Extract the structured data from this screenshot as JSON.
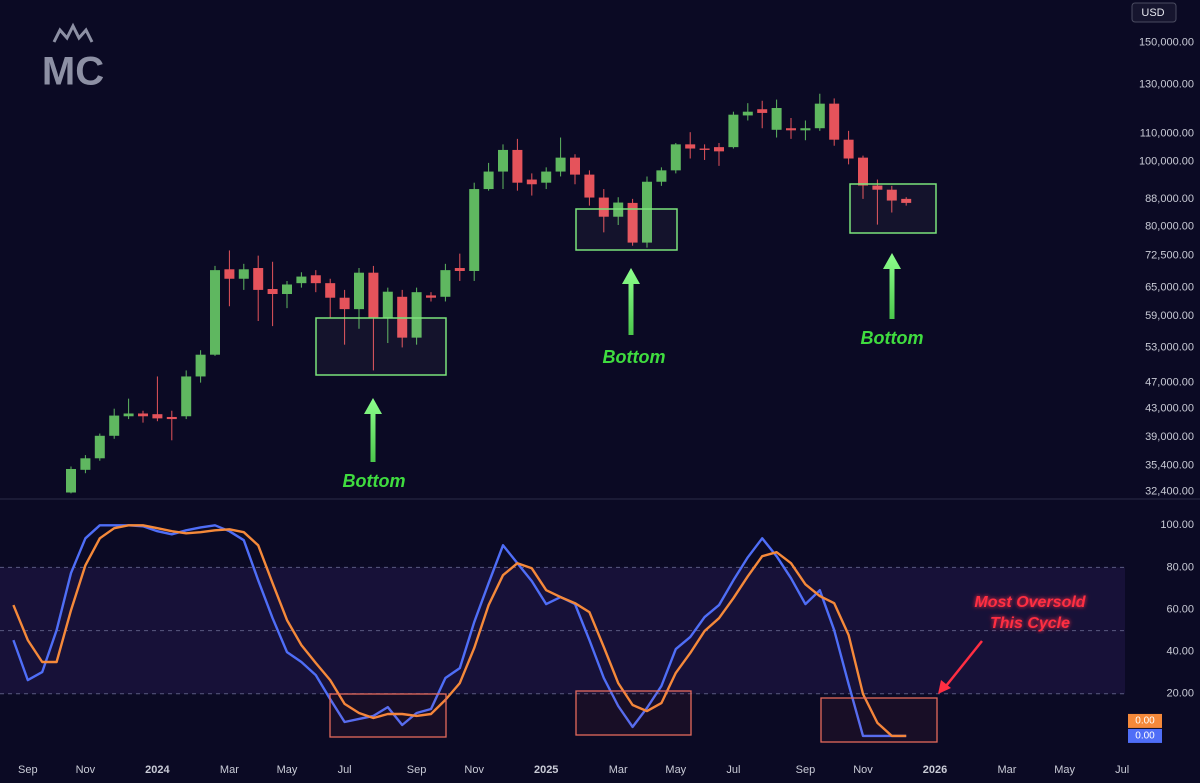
{
  "chart_data": [
    {
      "type": "candlestick",
      "unit": "USD",
      "watermark": "MC",
      "log_scale": true,
      "up_color": "#5fb760",
      "down_color": "#e5535b",
      "ylim": [
        31700,
        173500
      ],
      "yticks": [
        {
          "value": 150000,
          "label": "150,000.00"
        },
        {
          "value": 130000,
          "label": "130,000.00"
        },
        {
          "value": 110000,
          "label": "110,000.00"
        },
        {
          "value": 100000,
          "label": "100,000.00"
        },
        {
          "value": 88000,
          "label": "88,000.00"
        },
        {
          "value": 80000,
          "label": "80,000.00"
        },
        {
          "value": 72500,
          "label": "72,500.00"
        },
        {
          "value": 65000,
          "label": "65,000.00"
        },
        {
          "value": 59000,
          "label": "59,000.00"
        },
        {
          "value": 53000,
          "label": "53,000.00"
        },
        {
          "value": 47000,
          "label": "47,000.00"
        },
        {
          "value": 43000,
          "label": "43,000.00"
        },
        {
          "value": 39000,
          "label": "39,000.00"
        },
        {
          "value": 35400,
          "label": "35,400.00"
        },
        {
          "value": 32400,
          "label": "32,400.00"
        }
      ],
      "open": [
        null,
        null,
        null,
        null,
        32300,
        34900,
        36300,
        39200,
        41900,
        42300,
        42200,
        41800,
        41900,
        48000,
        51700,
        69200,
        67000,
        69500,
        64700,
        63600,
        66000,
        67800,
        66000,
        62800,
        60400,
        68400,
        58700,
        63000,
        54800,
        63300,
        63000,
        69500,
        68800,
        91000,
        96600,
        104000,
        94000,
        93000,
        96600,
        101300,
        95600,
        88400,
        82800,
        86800,
        75800,
        93300,
        97000,
        106000,
        104500,
        105000,
        105000,
        117000,
        119500,
        111400,
        112000,
        111200,
        112000,
        121800,
        107700,
        101300,
        92100,
        90800,
        88000,
        null,
        null,
        null,
        null,
        null,
        null,
        null,
        null,
        null,
        null,
        null,
        null,
        null,
        null,
        null
      ],
      "high": [
        null,
        null,
        null,
        null,
        35300,
        36700,
        39500,
        43000,
        44500,
        42700,
        48000,
        42700,
        49000,
        52500,
        70000,
        73800,
        70500,
        72500,
        71000,
        66500,
        68500,
        69000,
        67000,
        64500,
        69500,
        70000,
        65000,
        64500,
        65000,
        64000,
        70500,
        73000,
        93000,
        99500,
        106000,
        108000,
        96000,
        98000,
        108500,
        102500,
        97000,
        91000,
        88500,
        88000,
        95000,
        98000,
        106500,
        110500,
        106000,
        106500,
        118500,
        122000,
        123000,
        123500,
        116000,
        115000,
        126000,
        124000,
        111000,
        102000,
        94000,
        92000,
        88500,
        null,
        null,
        null,
        null,
        null,
        null,
        null,
        null,
        null,
        null,
        null,
        null,
        null,
        null,
        null
      ],
      "low": [
        null,
        null,
        null,
        null,
        32200,
        34500,
        36000,
        38800,
        41500,
        41000,
        41200,
        38600,
        41500,
        47000,
        51500,
        61000,
        64500,
        58000,
        57000,
        60600,
        65000,
        64000,
        58500,
        53500,
        56500,
        49000,
        53800,
        53000,
        53500,
        62000,
        62000,
        66500,
        66500,
        90500,
        91000,
        90500,
        89000,
        91000,
        95000,
        92500,
        86000,
        78500,
        80500,
        75000,
        74500,
        92000,
        96000,
        101000,
        100500,
        98500,
        104500,
        115000,
        112000,
        108500,
        108000,
        107500,
        111000,
        105500,
        99000,
        88000,
        80600,
        84000,
        86000,
        null,
        null,
        null,
        null,
        null,
        null,
        null,
        null,
        null,
        null,
        null,
        null,
        null,
        null,
        null
      ],
      "close": [
        null,
        null,
        null,
        null,
        35000,
        36300,
        39200,
        42000,
        42300,
        41900,
        41600,
        41500,
        48000,
        51700,
        69000,
        67000,
        69200,
        64500,
        63600,
        65700,
        67500,
        66000,
        62800,
        60400,
        68400,
        58700,
        64100,
        54800,
        64000,
        62800,
        69000,
        68800,
        91000,
        96600,
        104000,
        93000,
        92500,
        96600,
        101300,
        95600,
        88400,
        82800,
        86900,
        75800,
        93300,
        97000,
        106000,
        104500,
        104000,
        103500,
        117300,
        118500,
        118000,
        120000,
        111200,
        112000,
        121800,
        107700,
        101000,
        92100,
        90800,
        87500,
        86800,
        null,
        null,
        null,
        null,
        null,
        null,
        null,
        null,
        null,
        null,
        null,
        null,
        null,
        null,
        null
      ],
      "annotations": [
        "Bottom",
        "Bottom",
        "Bottom"
      ]
    },
    {
      "type": "line",
      "categories": [
        null,
        "Sep",
        null,
        null,
        null,
        "Nov",
        null,
        null,
        null,
        null,
        "2024",
        null,
        null,
        null,
        null,
        "Mar",
        null,
        null,
        null,
        "May",
        null,
        null,
        null,
        "Jul",
        null,
        null,
        null,
        null,
        "Sep",
        null,
        null,
        null,
        "Nov",
        null,
        null,
        null,
        null,
        "2025",
        null,
        null,
        null,
        null,
        "Mar",
        null,
        null,
        null,
        "May",
        null,
        null,
        null,
        "Jul",
        null,
        null,
        null,
        null,
        "Sep",
        null,
        null,
        null,
        "Nov",
        null,
        null,
        null,
        null,
        "2026",
        null,
        null,
        null,
        null,
        "Mar",
        null,
        null,
        null,
        "May",
        null,
        null,
        null,
        "Jul"
      ],
      "series": [
        {
          "color": "#4f6ef7",
          "last_label": "0.00",
          "values": [
            45.5,
            26.5,
            30.3,
            50.2,
            77.3,
            93.8,
            100,
            100,
            100,
            99.5,
            97.2,
            95.7,
            97.6,
            99,
            100,
            97.2,
            92.9,
            73.9,
            55.9,
            39.8,
            35.1,
            28.9,
            17.5,
            6.6,
            8.1,
            9.5,
            13.7,
            5.2,
            10.9,
            12.8,
            27.5,
            32.2,
            54,
            72.5,
            90.5,
            82,
            73.5,
            62.6,
            65.9,
            62.6,
            45.5,
            27.5,
            14.2,
            4.3,
            13.3,
            23.7,
            41.2,
            46.9,
            56.4,
            62.1,
            73.9,
            84.8,
            93.8,
            85.3,
            74.9,
            62.6,
            69.2,
            50.2,
            24.6,
            0,
            0,
            0,
            0,
            null,
            null,
            null,
            null,
            null,
            null,
            null,
            null,
            null,
            null,
            null,
            null,
            null,
            null,
            null
          ]
        },
        {
          "color": "#f5893a",
          "last_label": "0.00",
          "values": [
            62.1,
            45.5,
            35.1,
            35.1,
            59.7,
            81,
            93.8,
            98.6,
            100,
            100,
            98.6,
            97.2,
            96.2,
            96.7,
            97.6,
            98.1,
            96.7,
            90.5,
            72.5,
            55,
            43.1,
            34.6,
            26.5,
            15.2,
            10.9,
            8.5,
            10.4,
            10.4,
            9.5,
            10.4,
            17.1,
            25.1,
            41.7,
            62.1,
            76.3,
            82,
            79.6,
            69.2,
            65.9,
            63,
            58.8,
            42.2,
            25.1,
            14.7,
            11.8,
            15.6,
            29.9,
            39.3,
            49.8,
            55.9,
            65.4,
            75.8,
            85.3,
            87.2,
            82,
            72,
            66.4,
            63,
            47.9,
            19.9,
            6.2,
            0,
            0,
            null,
            null,
            null,
            null,
            null,
            null,
            null,
            null,
            null,
            null,
            null,
            null,
            null,
            null,
            null
          ]
        }
      ],
      "ylim": [
        -10,
        112
      ],
      "yticks": [
        {
          "value": 100,
          "label": "100.00"
        },
        {
          "value": 80,
          "label": "80.00"
        },
        {
          "value": 60,
          "label": "60.00"
        },
        {
          "value": 40,
          "label": "40.00"
        },
        {
          "value": 20,
          "label": "20.00"
        }
      ],
      "levels": [
        20,
        50,
        80
      ],
      "annotation": [
        "Most Oversold",
        "This Cycle"
      ]
    }
  ]
}
